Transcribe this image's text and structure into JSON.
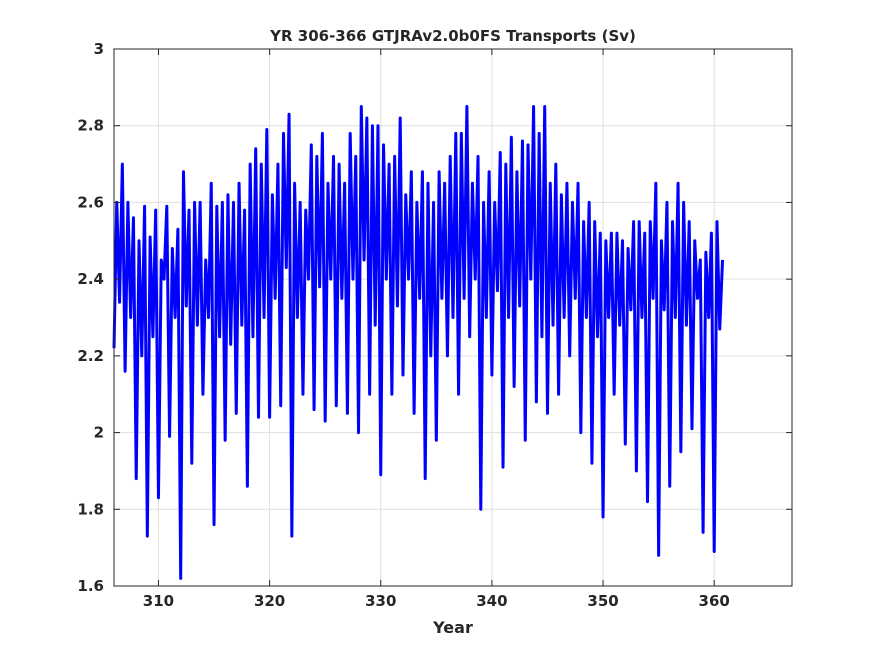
{
  "chart_data": {
    "type": "line",
    "title": "YR 306-366 GTJRAv2.0b0FS Transports (Sv)",
    "xlabel": "Year",
    "ylabel": "",
    "xlim": [
      306,
      367
    ],
    "ylim": [
      1.6,
      3.0
    ],
    "x_ticks": [
      310,
      320,
      330,
      340,
      350,
      360
    ],
    "x_tick_labels": [
      "310",
      "320",
      "330",
      "340",
      "350",
      "360"
    ],
    "y_ticks": [
      1.6,
      1.8,
      2.0,
      2.2,
      2.4,
      2.6,
      2.8,
      3.0
    ],
    "y_tick_labels": [
      "1.6",
      "1.8",
      "2",
      "2.2",
      "2.4",
      "2.6",
      "2.8",
      "3"
    ],
    "grid": true,
    "legend": "none",
    "series": [
      {
        "color": "#0000ff",
        "x_start": 306.0,
        "x_step": 0.25,
        "values": [
          2.22,
          2.6,
          2.34,
          2.7,
          2.16,
          2.6,
          2.3,
          2.56,
          1.88,
          2.5,
          2.2,
          2.59,
          1.73,
          2.51,
          2.25,
          2.58,
          1.83,
          2.45,
          2.4,
          2.59,
          1.99,
          2.48,
          2.3,
          2.53,
          1.62,
          2.68,
          2.33,
          2.58,
          1.92,
          2.6,
          2.28,
          2.6,
          2.1,
          2.45,
          2.3,
          2.65,
          1.76,
          2.59,
          2.25,
          2.6,
          1.98,
          2.62,
          2.23,
          2.6,
          2.05,
          2.65,
          2.28,
          2.58,
          1.86,
          2.7,
          2.25,
          2.74,
          2.04,
          2.7,
          2.3,
          2.79,
          2.04,
          2.62,
          2.35,
          2.7,
          2.07,
          2.78,
          2.43,
          2.83,
          1.73,
          2.65,
          2.3,
          2.6,
          2.1,
          2.58,
          2.4,
          2.75,
          2.06,
          2.72,
          2.38,
          2.78,
          2.03,
          2.65,
          2.4,
          2.72,
          2.07,
          2.7,
          2.35,
          2.65,
          2.05,
          2.78,
          2.4,
          2.72,
          2.0,
          2.85,
          2.45,
          2.82,
          2.1,
          2.8,
          2.28,
          2.8,
          1.89,
          2.75,
          2.4,
          2.7,
          2.1,
          2.72,
          2.33,
          2.82,
          2.15,
          2.62,
          2.4,
          2.68,
          2.05,
          2.6,
          2.35,
          2.68,
          1.88,
          2.65,
          2.2,
          2.6,
          1.98,
          2.68,
          2.35,
          2.65,
          2.2,
          2.72,
          2.3,
          2.78,
          2.1,
          2.78,
          2.35,
          2.85,
          2.25,
          2.65,
          2.4,
          2.72,
          1.8,
          2.6,
          2.3,
          2.68,
          2.15,
          2.6,
          2.37,
          2.73,
          1.91,
          2.7,
          2.3,
          2.77,
          2.12,
          2.68,
          2.33,
          2.76,
          1.98,
          2.75,
          2.4,
          2.85,
          2.08,
          2.78,
          2.25,
          2.85,
          2.05,
          2.65,
          2.28,
          2.7,
          2.1,
          2.62,
          2.3,
          2.65,
          2.2,
          2.6,
          2.35,
          2.65,
          2.0,
          2.55,
          2.3,
          2.6,
          1.92,
          2.55,
          2.25,
          2.52,
          1.78,
          2.5,
          2.3,
          2.52,
          2.1,
          2.52,
          2.28,
          2.5,
          1.97,
          2.48,
          2.32,
          2.55,
          1.9,
          2.55,
          2.3,
          2.52,
          1.82,
          2.55,
          2.35,
          2.65,
          1.68,
          2.5,
          2.32,
          2.6,
          1.86,
          2.55,
          2.3,
          2.65,
          1.95,
          2.6,
          2.28,
          2.55,
          2.01,
          2.5,
          2.35,
          2.45,
          1.74,
          2.47,
          2.3,
          2.52,
          1.69,
          2.55,
          2.27,
          2.45
        ]
      }
    ]
  }
}
